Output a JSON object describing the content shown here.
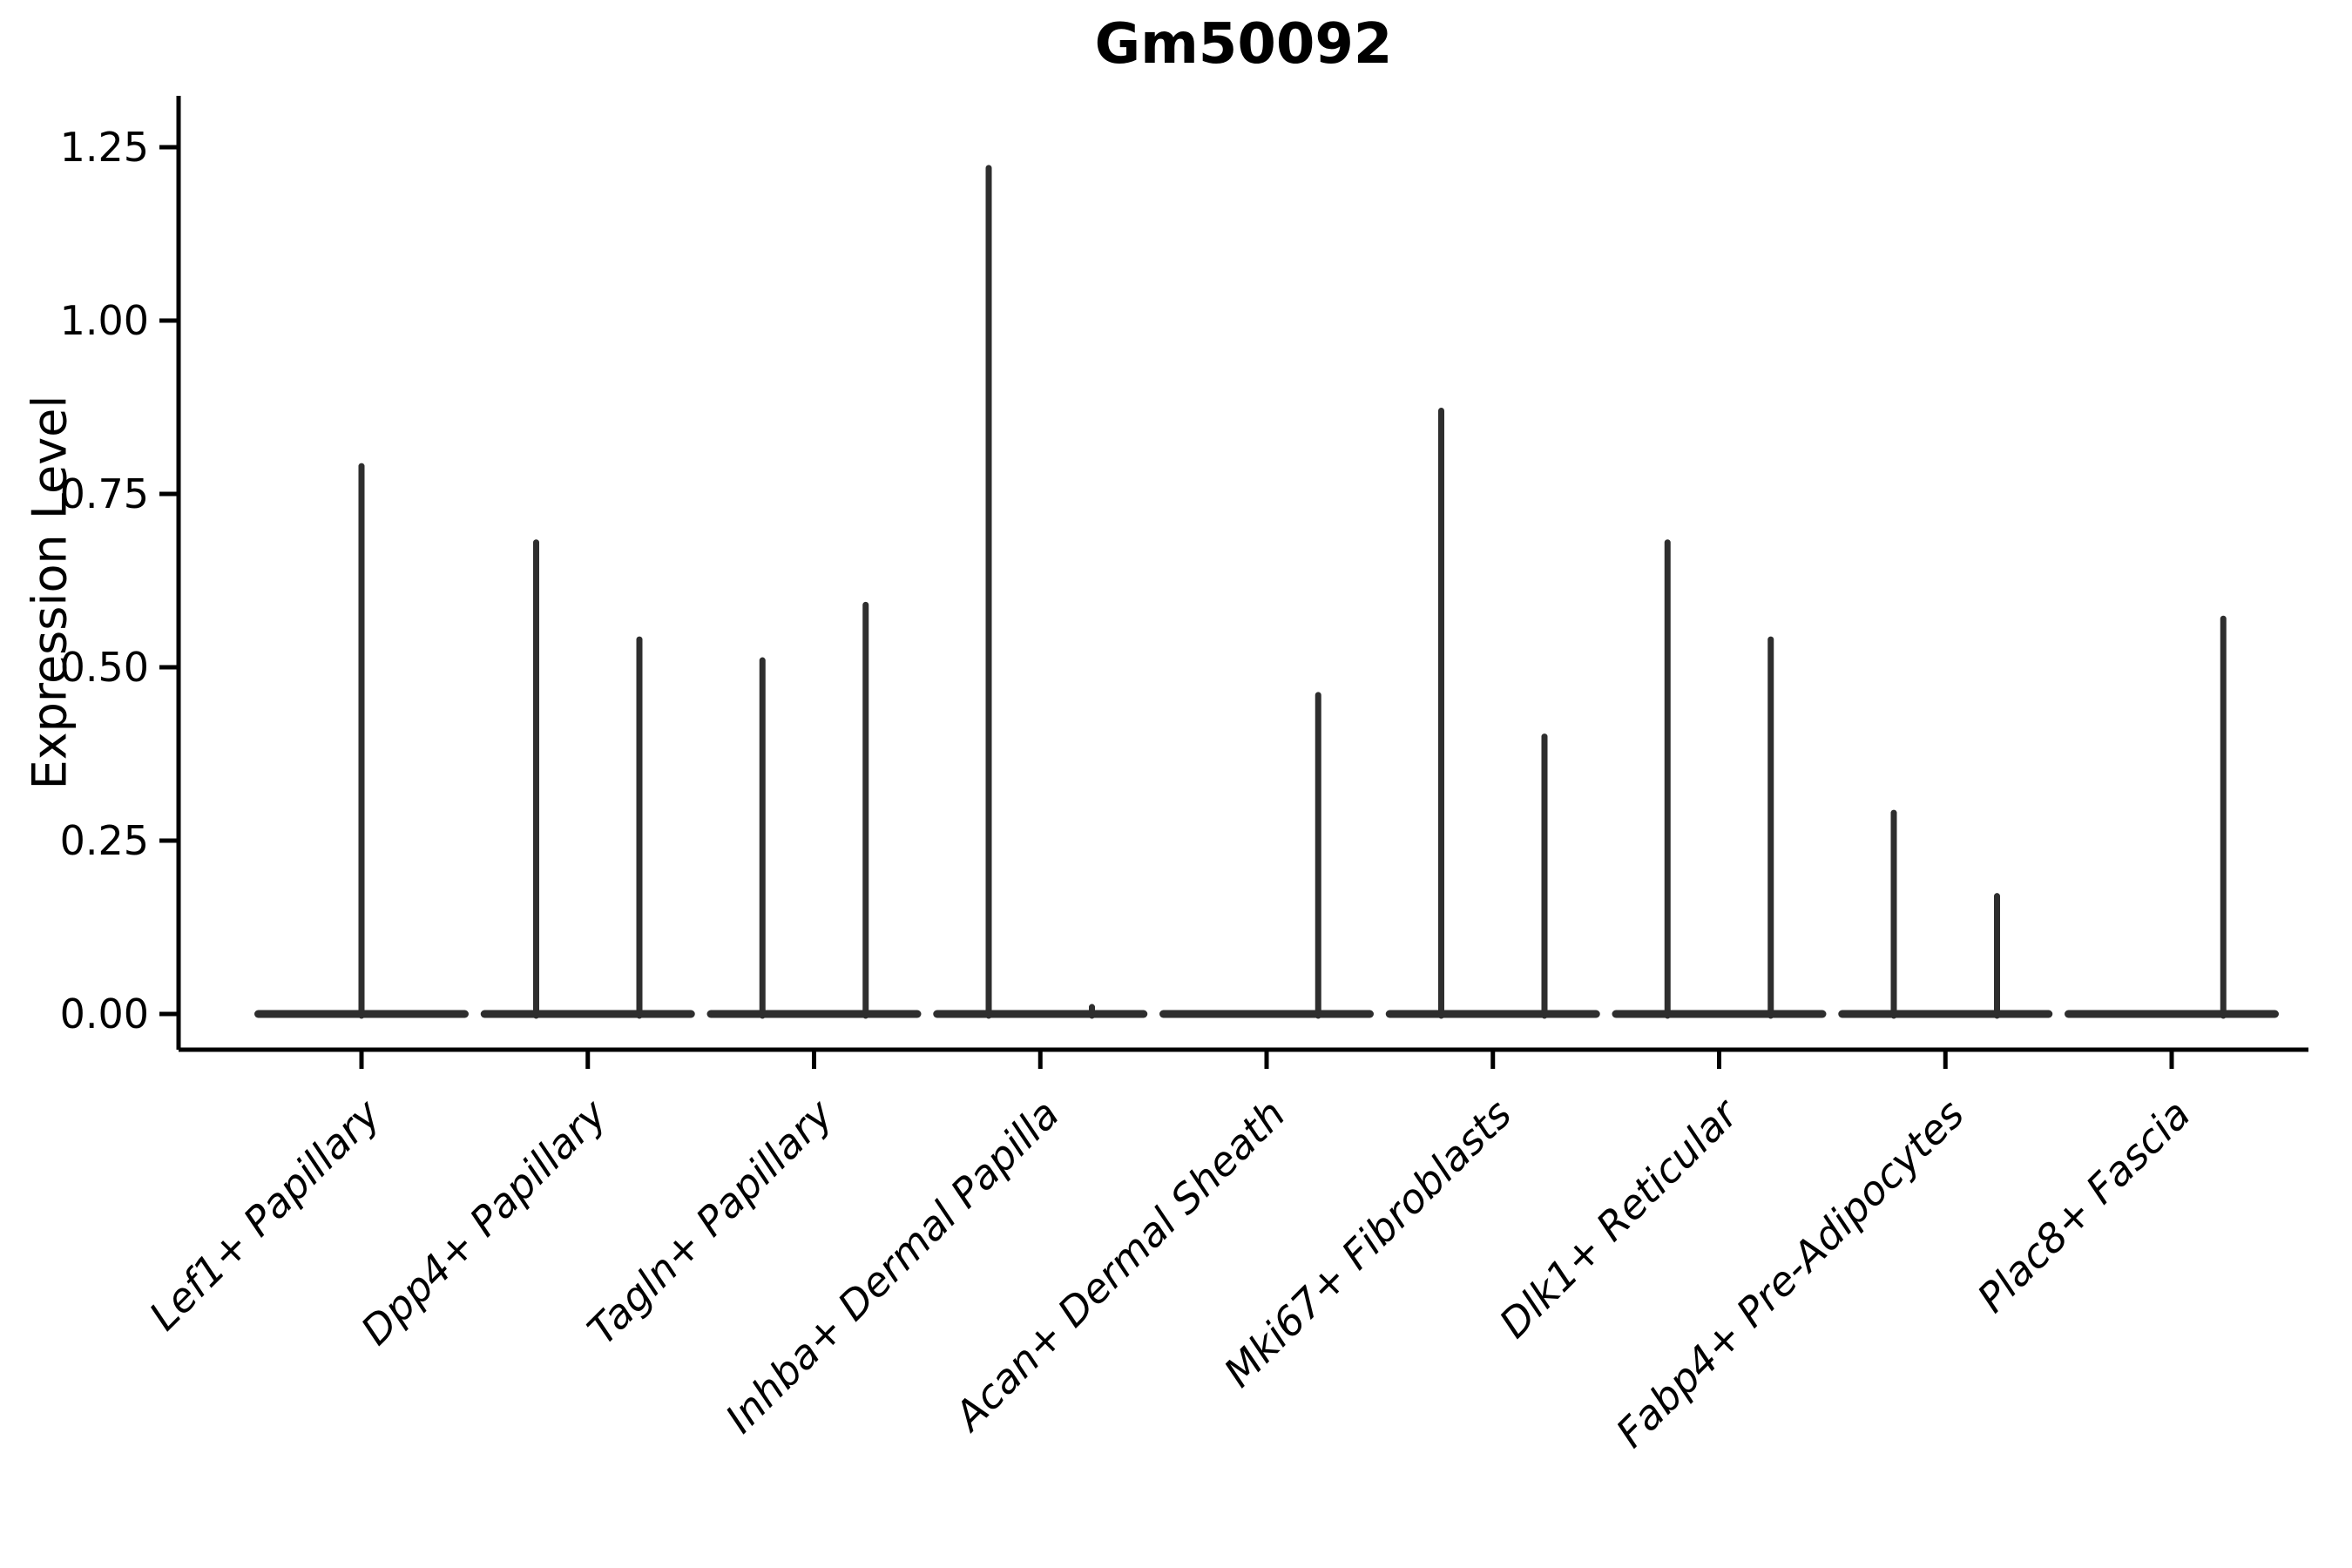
{
  "figure": {
    "title": "Gm50092",
    "ylabel": "Expression Level"
  },
  "chart_data": {
    "type": "violin",
    "title": "Gm50092",
    "xlabel": "",
    "ylabel": "Expression Level",
    "ylim": [
      0,
      1.25
    ],
    "yticks": [
      0,
      0.25,
      0.5,
      0.75,
      1.0,
      1.25
    ],
    "ytick_labels": [
      "0.00",
      "0.25",
      "0.50",
      "0.75",
      "1.00",
      "1.25"
    ],
    "grid": "off",
    "legend": "none",
    "categories": [
      "Lef1+ Papillary",
      "Dpp4+ Papillary",
      "Tagln+ Papillary",
      "Inhba+ Dermal Papilla",
      "Acan+ Dermal Sheath",
      "Mki67+ Fibroblasts",
      "Dlk1+ Reticular",
      "Fabp4+ Pre-Adipocytes",
      "Plac8+ Fascia"
    ],
    "violins": [
      {
        "category": "Lef1+ Papillary",
        "spikes": [
          {
            "position": "center",
            "max": 0.79
          }
        ]
      },
      {
        "category": "Dpp4+ Papillary",
        "spikes": [
          {
            "position": "left",
            "max": 0.68
          },
          {
            "position": "right",
            "max": 0.54
          }
        ]
      },
      {
        "category": "Tagln+ Papillary",
        "spikes": [
          {
            "position": "left",
            "max": 0.51
          },
          {
            "position": "right",
            "max": 0.59
          }
        ]
      },
      {
        "category": "Inhba+ Dermal Papilla",
        "spikes": [
          {
            "position": "left",
            "max": 1.22
          },
          {
            "position": "right",
            "max": 0.01
          }
        ]
      },
      {
        "category": "Acan+ Dermal Sheath",
        "spikes": [
          {
            "position": "left",
            "max": 0.0
          },
          {
            "position": "right",
            "max": 0.46
          }
        ]
      },
      {
        "category": "Mki67+ Fibroblasts",
        "spikes": [
          {
            "position": "left",
            "max": 0.87
          },
          {
            "position": "right",
            "max": 0.4
          }
        ]
      },
      {
        "category": "Dlk1+ Reticular",
        "spikes": [
          {
            "position": "left",
            "max": 0.68
          },
          {
            "position": "right",
            "max": 0.54
          }
        ]
      },
      {
        "category": "Fabp4+ Pre-Adipocytes",
        "spikes": [
          {
            "position": "left",
            "max": 0.29
          },
          {
            "position": "right",
            "max": 0.17
          }
        ]
      },
      {
        "category": "Plac8+ Fascia",
        "spikes": [
          {
            "position": "left",
            "max": 0.0
          },
          {
            "position": "right",
            "max": 0.57
          }
        ]
      }
    ],
    "colors": {
      "violin": "#2e2e2e",
      "axis": "#000000",
      "text": "#000000"
    }
  }
}
